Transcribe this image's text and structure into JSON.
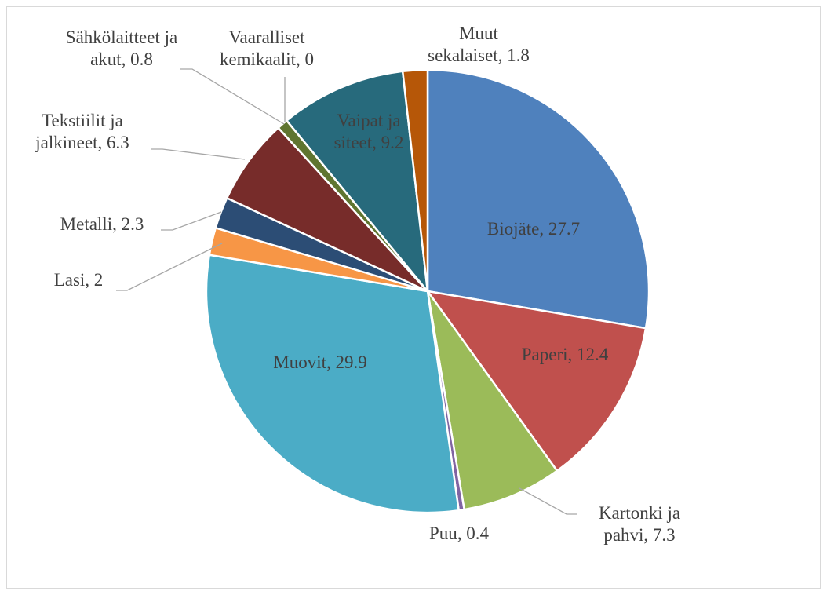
{
  "chart_data": {
    "type": "pie",
    "categories": [
      "Biojäte",
      "Paperi",
      "Kartonki ja pahvi",
      "Puu",
      "Muovit",
      "Lasi",
      "Metalli",
      "Tekstiilit ja jalkineet",
      "Sähkölaitteet ja akut",
      "Vaaralliset kemikaalit",
      "Vaipat ja siteet",
      "Muut sekalaiset"
    ],
    "values": [
      27.7,
      12.4,
      7.3,
      0.4,
      29.9,
      2,
      2.3,
      6.3,
      0.8,
      0,
      9.2,
      1.8
    ],
    "label_separator": ", ",
    "colors": [
      "#4f81bd",
      "#c0504d",
      "#9bbb59",
      "#8064a2",
      "#4bacc6",
      "#f79646",
      "#2c4d75",
      "#772c2a",
      "#5f7530",
      "#4d3b62",
      "#276a7c",
      "#b65708"
    ]
  }
}
